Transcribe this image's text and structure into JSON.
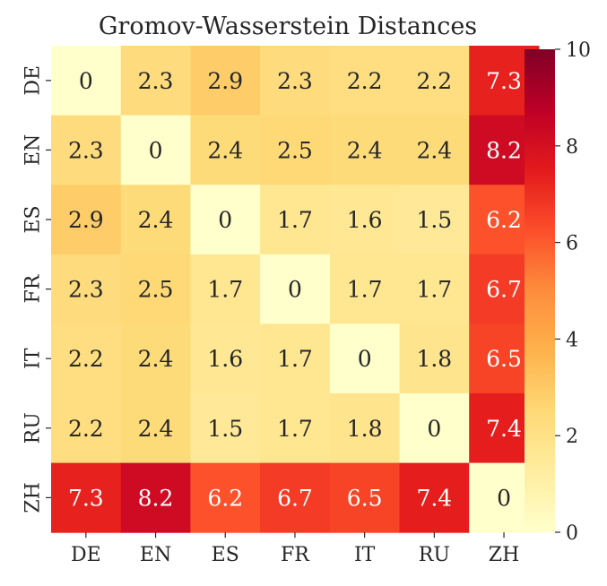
{
  "chart_data": {
    "type": "heatmap",
    "title": "Gromov-Wasserstein Distances",
    "x_labels": [
      "DE",
      "EN",
      "ES",
      "FR",
      "IT",
      "RU",
      "ZH"
    ],
    "y_labels": [
      "DE",
      "EN",
      "ES",
      "FR",
      "IT",
      "RU",
      "ZH"
    ],
    "values": [
      [
        0,
        2.3,
        2.9,
        2.3,
        2.2,
        2.2,
        7.3
      ],
      [
        2.3,
        0,
        2.4,
        2.5,
        2.4,
        2.4,
        8.2
      ],
      [
        2.9,
        2.4,
        0,
        1.7,
        1.6,
        1.5,
        6.2
      ],
      [
        2.3,
        2.5,
        1.7,
        0,
        1.7,
        1.7,
        6.7
      ],
      [
        2.2,
        2.4,
        1.6,
        1.7,
        0,
        1.8,
        6.5
      ],
      [
        2.2,
        2.4,
        1.5,
        1.7,
        1.8,
        0,
        7.4
      ],
      [
        7.3,
        8.2,
        6.2,
        6.7,
        6.5,
        7.4,
        0
      ]
    ],
    "colormap": "YlOrRd",
    "colorbar": {
      "range": [
        0,
        10
      ],
      "ticks": [
        "0",
        "2",
        "4",
        "6",
        "8",
        "10"
      ]
    }
  }
}
